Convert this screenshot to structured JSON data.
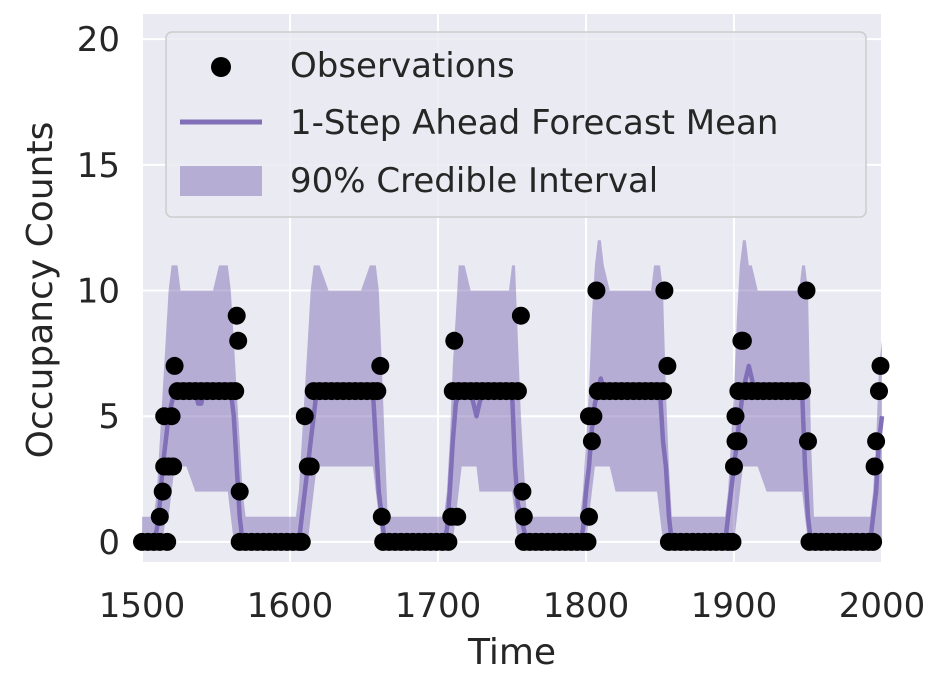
{
  "chart_data": {
    "type": "line",
    "xlabel": "Time",
    "ylabel": "Occupancy Counts",
    "xlim": [
      1500,
      2000
    ],
    "ylim": [
      -0.8,
      21
    ],
    "xticks": [
      1500,
      1600,
      1700,
      1800,
      1900,
      2000
    ],
    "yticks": [
      0,
      5,
      10,
      15,
      20
    ],
    "grid": true,
    "legend": {
      "placement": "top-left",
      "entries": [
        "Observations",
        "1-Step Ahead Forecast Mean",
        "90% Credible Interval"
      ]
    },
    "colors": {
      "plot_background": "#eaeaf2",
      "grid": "#ffffff",
      "mean_line": "#8170b8",
      "interval_fill": "#8170b8",
      "observations": "#000000"
    },
    "series": [
      {
        "name": "Observations",
        "kind": "scatter",
        "points": [
          [
            1500,
            0
          ],
          [
            1504,
            0
          ],
          [
            1508,
            0
          ],
          [
            1512,
            0
          ],
          [
            1512,
            1
          ],
          [
            1514,
            2
          ],
          [
            1515,
            3
          ],
          [
            1515,
            5
          ],
          [
            1517,
            0
          ],
          [
            1518,
            3
          ],
          [
            1520,
            5
          ],
          [
            1521,
            3
          ],
          [
            1522,
            7
          ],
          [
            1524,
            6
          ],
          [
            1528,
            6
          ],
          [
            1532,
            6
          ],
          [
            1536,
            6
          ],
          [
            1540,
            6
          ],
          [
            1544,
            6
          ],
          [
            1548,
            6
          ],
          [
            1552,
            6
          ],
          [
            1556,
            6
          ],
          [
            1560,
            6
          ],
          [
            1563,
            6
          ],
          [
            1564,
            9
          ],
          [
            1565,
            8
          ],
          [
            1566,
            2
          ],
          [
            1566,
            0
          ],
          [
            1570,
            0
          ],
          [
            1574,
            0
          ],
          [
            1578,
            0
          ],
          [
            1582,
            0
          ],
          [
            1586,
            0
          ],
          [
            1590,
            0
          ],
          [
            1594,
            0
          ],
          [
            1598,
            0
          ],
          [
            1602,
            0
          ],
          [
            1606,
            0
          ],
          [
            1608,
            0
          ],
          [
            1610,
            5
          ],
          [
            1612,
            3
          ],
          [
            1614,
            3
          ],
          [
            1616,
            6
          ],
          [
            1620,
            6
          ],
          [
            1624,
            6
          ],
          [
            1628,
            6
          ],
          [
            1632,
            6
          ],
          [
            1636,
            6
          ],
          [
            1640,
            6
          ],
          [
            1644,
            6
          ],
          [
            1648,
            6
          ],
          [
            1652,
            6
          ],
          [
            1656,
            6
          ],
          [
            1659,
            6
          ],
          [
            1661,
            7
          ],
          [
            1662,
            1
          ],
          [
            1663,
            0
          ],
          [
            1667,
            0
          ],
          [
            1671,
            0
          ],
          [
            1675,
            0
          ],
          [
            1679,
            0
          ],
          [
            1683,
            0
          ],
          [
            1687,
            0
          ],
          [
            1691,
            0
          ],
          [
            1695,
            0
          ],
          [
            1699,
            0
          ],
          [
            1703,
            0
          ],
          [
            1707,
            0
          ],
          [
            1709,
            1
          ],
          [
            1710,
            6
          ],
          [
            1711,
            8
          ],
          [
            1713,
            1
          ],
          [
            1714,
            6
          ],
          [
            1718,
            6
          ],
          [
            1722,
            6
          ],
          [
            1726,
            6
          ],
          [
            1730,
            6
          ],
          [
            1734,
            6
          ],
          [
            1738,
            6
          ],
          [
            1742,
            6
          ],
          [
            1746,
            6
          ],
          [
            1750,
            6
          ],
          [
            1754,
            6
          ],
          [
            1756,
            9
          ],
          [
            1757,
            2
          ],
          [
            1758,
            1
          ],
          [
            1758,
            0
          ],
          [
            1762,
            0
          ],
          [
            1766,
            0
          ],
          [
            1770,
            0
          ],
          [
            1774,
            0
          ],
          [
            1778,
            0
          ],
          [
            1782,
            0
          ],
          [
            1786,
            0
          ],
          [
            1790,
            0
          ],
          [
            1794,
            0
          ],
          [
            1798,
            0
          ],
          [
            1801,
            0
          ],
          [
            1802,
            1
          ],
          [
            1802,
            5
          ],
          [
            1804,
            4
          ],
          [
            1805,
            5
          ],
          [
            1807,
            10
          ],
          [
            1808,
            6
          ],
          [
            1812,
            6
          ],
          [
            1816,
            6
          ],
          [
            1820,
            6
          ],
          [
            1824,
            6
          ],
          [
            1828,
            6
          ],
          [
            1832,
            6
          ],
          [
            1836,
            6
          ],
          [
            1840,
            6
          ],
          [
            1844,
            6
          ],
          [
            1848,
            6
          ],
          [
            1852,
            6
          ],
          [
            1853,
            10
          ],
          [
            1855,
            7
          ],
          [
            1856,
            0
          ],
          [
            1860,
            0
          ],
          [
            1864,
            0
          ],
          [
            1868,
            0
          ],
          [
            1872,
            0
          ],
          [
            1876,
            0
          ],
          [
            1880,
            0
          ],
          [
            1884,
            0
          ],
          [
            1888,
            0
          ],
          [
            1892,
            0
          ],
          [
            1896,
            0
          ],
          [
            1899,
            0
          ],
          [
            1900,
            3
          ],
          [
            1901,
            4
          ],
          [
            1901,
            5
          ],
          [
            1903,
            6
          ],
          [
            1903,
            4
          ],
          [
            1905,
            8
          ],
          [
            1906,
            8
          ],
          [
            1908,
            6
          ],
          [
            1912,
            6
          ],
          [
            1916,
            6
          ],
          [
            1920,
            6
          ],
          [
            1924,
            6
          ],
          [
            1928,
            6
          ],
          [
            1932,
            6
          ],
          [
            1936,
            6
          ],
          [
            1940,
            6
          ],
          [
            1944,
            6
          ],
          [
            1946,
            6
          ],
          [
            1949,
            10
          ],
          [
            1950,
            4
          ],
          [
            1951,
            0
          ],
          [
            1955,
            0
          ],
          [
            1959,
            0
          ],
          [
            1963,
            0
          ],
          [
            1967,
            0
          ],
          [
            1971,
            0
          ],
          [
            1975,
            0
          ],
          [
            1979,
            0
          ],
          [
            1983,
            0
          ],
          [
            1987,
            0
          ],
          [
            1991,
            0
          ],
          [
            1994,
            0
          ],
          [
            1995,
            3
          ],
          [
            1996,
            4
          ],
          [
            1998,
            6
          ],
          [
            1999,
            7
          ]
        ]
      },
      {
        "name": "1-Step Ahead Forecast Mean",
        "kind": "line",
        "x": [
          1500,
          1508,
          1510,
          1512,
          1514,
          1516,
          1518,
          1520,
          1522,
          1524,
          1536,
          1538,
          1540,
          1542,
          1544,
          1560,
          1562,
          1564,
          1566,
          1568,
          1570,
          1604,
          1606,
          1608,
          1610,
          1612,
          1614,
          1616,
          1618,
          1656,
          1658,
          1660,
          1662,
          1664,
          1666,
          1704,
          1706,
          1708,
          1710,
          1712,
          1714,
          1722,
          1724,
          1726,
          1728,
          1730,
          1732,
          1750,
          1752,
          1754,
          1756,
          1758,
          1760,
          1796,
          1798,
          1800,
          1802,
          1804,
          1806,
          1808,
          1810,
          1812,
          1814,
          1850,
          1852,
          1854,
          1856,
          1858,
          1860,
          1894,
          1896,
          1898,
          1900,
          1902,
          1904,
          1906,
          1908,
          1910,
          1912,
          1914,
          1946,
          1948,
          1950,
          1952,
          1954,
          1992,
          1994,
          1996,
          1998,
          2000
        ],
        "values": [
          0,
          0,
          0.5,
          1.5,
          3,
          4,
          5,
          5.5,
          6,
          6,
          6,
          5.5,
          5.5,
          6,
          6,
          6,
          5,
          3,
          1,
          0,
          0,
          0,
          0,
          1,
          2,
          3,
          4,
          5,
          6,
          6,
          4,
          2,
          1,
          0,
          0,
          0,
          0.5,
          2,
          4,
          5.5,
          6,
          6,
          5.5,
          5,
          5.5,
          6,
          6,
          6,
          3,
          1.5,
          1,
          0.5,
          0,
          0,
          0.5,
          2,
          3,
          4.5,
          5.5,
          6,
          6.5,
          6,
          6,
          6,
          4,
          3,
          1,
          0,
          0,
          0,
          1,
          2,
          3,
          4,
          5,
          6,
          6.5,
          7,
          6.5,
          6,
          6,
          3,
          1,
          0,
          0,
          0,
          1,
          2,
          4,
          5
        ]
      },
      {
        "name": "90% Credible Interval",
        "kind": "area",
        "x": [
          1500,
          1508,
          1510,
          1512,
          1514,
          1516,
          1518,
          1520,
          1522,
          1524,
          1526,
          1530,
          1536,
          1540,
          1544,
          1548,
          1552,
          1556,
          1558,
          1560,
          1562,
          1564,
          1566,
          1568,
          1570,
          1604,
          1606,
          1608,
          1610,
          1612,
          1614,
          1616,
          1618,
          1620,
          1626,
          1632,
          1640,
          1648,
          1654,
          1656,
          1658,
          1660,
          1662,
          1664,
          1666,
          1704,
          1706,
          1708,
          1710,
          1712,
          1714,
          1716,
          1718,
          1722,
          1724,
          1726,
          1728,
          1732,
          1740,
          1748,
          1750,
          1752,
          1754,
          1756,
          1758,
          1760,
          1796,
          1798,
          1800,
          1802,
          1804,
          1806,
          1808,
          1810,
          1812,
          1816,
          1820,
          1828,
          1836,
          1844,
          1846,
          1848,
          1850,
          1852,
          1854,
          1856,
          1858,
          1860,
          1894,
          1896,
          1898,
          1900,
          1902,
          1904,
          1906,
          1908,
          1910,
          1912,
          1916,
          1922,
          1932,
          1940,
          1944,
          1946,
          1948,
          1950,
          1952,
          1954,
          1992,
          1994,
          1996,
          1998,
          2000
        ],
        "lower": [
          0,
          0,
          0,
          0,
          0,
          1,
          1,
          2,
          3,
          3,
          3,
          3,
          2,
          2,
          2,
          2,
          2,
          2,
          2,
          1,
          0,
          0,
          0,
          0,
          0,
          0,
          0,
          0,
          0,
          0,
          1,
          2,
          3,
          3,
          3,
          3,
          3,
          3,
          3,
          3,
          2,
          1,
          0,
          0,
          0,
          0,
          0,
          0,
          0,
          1,
          2,
          3,
          3,
          3,
          3,
          3,
          2,
          2,
          2,
          2,
          2,
          1,
          0,
          0,
          0,
          0,
          0,
          0,
          0,
          1,
          2,
          3,
          3,
          3,
          3,
          3,
          2,
          2,
          2,
          2,
          2,
          2,
          1,
          0,
          0,
          0,
          0,
          0,
          0,
          0,
          0,
          0,
          1,
          2,
          3,
          3,
          3,
          3,
          3,
          2,
          2,
          2,
          2,
          2,
          1,
          0,
          0,
          0,
          0,
          0,
          0,
          0,
          0
        ],
        "upper": [
          1,
          1,
          2,
          4,
          6,
          8,
          10,
          11,
          11,
          11,
          10,
          10,
          10,
          10,
          10,
          10,
          11,
          11,
          11,
          10,
          8,
          6,
          4,
          2,
          1,
          1,
          2,
          4,
          6,
          8,
          10,
          11,
          11,
          11,
          10,
          10,
          10,
          10,
          11,
          11,
          11,
          10,
          7,
          4,
          1,
          1,
          2,
          4,
          7,
          9,
          11,
          11,
          11,
          10,
          10,
          10,
          10,
          10,
          10,
          10,
          11,
          11,
          8,
          5,
          3,
          1,
          1,
          2,
          4,
          6,
          9,
          11,
          12,
          12,
          11,
          10,
          10,
          10,
          10,
          10,
          11,
          11,
          11,
          10,
          6,
          3,
          1,
          1,
          1,
          2,
          4,
          6,
          9,
          11,
          12,
          12,
          11,
          11,
          10,
          10,
          10,
          10,
          10,
          11,
          11,
          10,
          4,
          1,
          1,
          2,
          4,
          7,
          8
        ]
      }
    ]
  }
}
